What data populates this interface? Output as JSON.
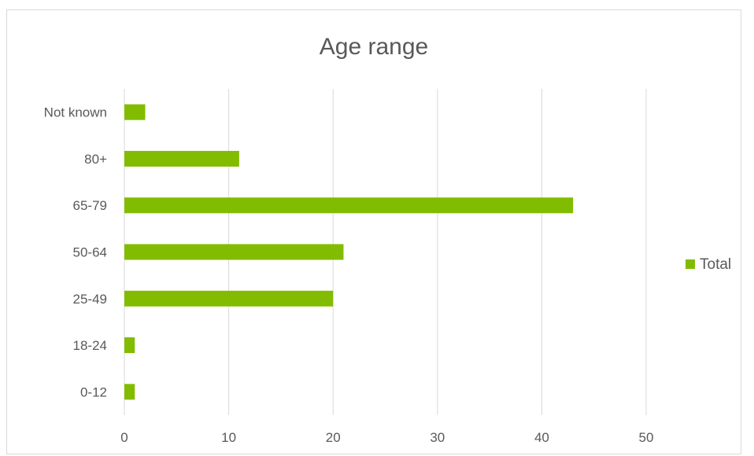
{
  "chart_data": {
    "type": "bar",
    "orientation": "horizontal",
    "title": "Age range",
    "categories": [
      "0-12",
      "18-24",
      "25-49",
      "50-64",
      "65-79",
      "80+",
      "Not known"
    ],
    "series": [
      {
        "name": "Total",
        "values": [
          1,
          1,
          20,
          21,
          43,
          11,
          2
        ],
        "color": "#82bc00"
      }
    ],
    "xlim": [
      0,
      50
    ],
    "x_ticks": [
      0,
      10,
      20,
      30,
      40,
      50
    ],
    "grid": true,
    "legend_position": "right",
    "gridline_color": "#d9d9d9",
    "axis_label_color": "#595959"
  }
}
